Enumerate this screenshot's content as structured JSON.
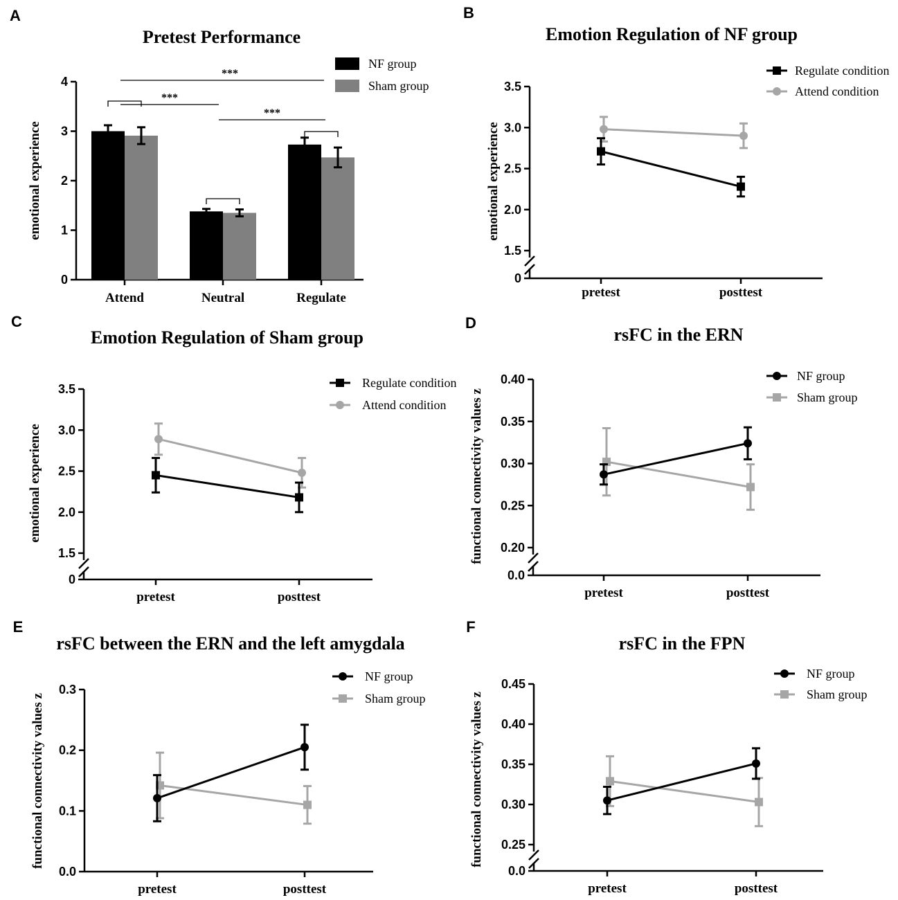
{
  "colors": {
    "nf": "#000000",
    "sham": "#a6a6a6",
    "sham_bar": "#808080"
  },
  "chart_data": [
    {
      "id": "A",
      "type": "bar",
      "panel_label": "A",
      "title": "Pretest Performance",
      "ylabel": "emotional experience",
      "ylim": [
        0,
        4
      ],
      "yticks": [
        "0",
        "1",
        "2",
        "3",
        "4"
      ],
      "categories": [
        "Attend",
        "Neutral",
        "Regulate"
      ],
      "series": [
        {
          "name": "NF group",
          "values": [
            3.0,
            1.38,
            2.73
          ],
          "errors": [
            0.12,
            0.05,
            0.14
          ]
        },
        {
          "name": "Sham group",
          "values": [
            2.91,
            1.35,
            2.47
          ],
          "errors": [
            0.17,
            0.07,
            0.2
          ]
        }
      ],
      "significance": [
        "***",
        "***",
        "***"
      ]
    },
    {
      "id": "B",
      "type": "line",
      "panel_label": "B",
      "title": "Emotion Regulation of NF group",
      "ylabel": "emotional experience",
      "ylim": [
        1.5,
        3.5
      ],
      "yticks": [
        "1.5",
        "2.0",
        "2.5",
        "3.0",
        "3.5"
      ],
      "ybreak": "0",
      "categories": [
        "pretest",
        "posttest"
      ],
      "series": [
        {
          "name": "Regulate condition",
          "values": [
            2.71,
            2.28
          ],
          "errors": [
            0.16,
            0.12
          ]
        },
        {
          "name": "Attend condition",
          "values": [
            2.98,
            2.9
          ],
          "errors": [
            0.15,
            0.15
          ]
        }
      ]
    },
    {
      "id": "C",
      "type": "line",
      "panel_label": "C",
      "title": "Emotion Regulation of Sham group",
      "ylabel": "emotional experience",
      "ylim": [
        1.5,
        3.5
      ],
      "yticks": [
        "1.5",
        "2.0",
        "2.5",
        "3.0",
        "3.5"
      ],
      "ybreak": "0",
      "categories": [
        "pretest",
        "posttest"
      ],
      "series": [
        {
          "name": "Regulate condition",
          "values": [
            2.45,
            2.18
          ],
          "errors": [
            0.21,
            0.18
          ]
        },
        {
          "name": "Attend condition",
          "values": [
            2.89,
            2.48
          ],
          "errors": [
            0.19,
            0.18
          ]
        }
      ]
    },
    {
      "id": "D",
      "type": "line",
      "panel_label": "D",
      "title": "rsFC in the ERN",
      "ylabel": "functional connectivity values z",
      "ylim": [
        0.2,
        0.4
      ],
      "yticks": [
        "0.20",
        "0.25",
        "0.30",
        "0.35",
        "0.40"
      ],
      "ybreak": "0.0",
      "categories": [
        "pretest",
        "posttest"
      ],
      "series": [
        {
          "name": "NF group",
          "values": [
            0.287,
            0.324
          ],
          "errors": [
            0.012,
            0.019
          ]
        },
        {
          "name": "Sham group",
          "values": [
            0.302,
            0.272
          ],
          "errors": [
            0.04,
            0.027
          ]
        }
      ]
    },
    {
      "id": "E",
      "type": "line",
      "panel_label": "E",
      "title": "rsFC between the ERN and the left amygdala",
      "ylabel": "functional connectivity values z",
      "ylim": [
        0,
        0.3
      ],
      "yticks": [
        "0.0",
        "0.1",
        "0.2",
        "0.3"
      ],
      "categories": [
        "pretest",
        "posttest"
      ],
      "series": [
        {
          "name": "NF group",
          "values": [
            0.121,
            0.205
          ],
          "errors": [
            0.038,
            0.037
          ]
        },
        {
          "name": "Sham group",
          "values": [
            0.142,
            0.11
          ],
          "errors": [
            0.054,
            0.031
          ]
        }
      ]
    },
    {
      "id": "F",
      "type": "line",
      "panel_label": "F",
      "title": "rsFC in the FPN",
      "ylabel": "functional connectivity values z",
      "ylim": [
        0.25,
        0.45
      ],
      "yticks": [
        "0.25",
        "0.30",
        "0.35",
        "0.40",
        "0.45"
      ],
      "ybreak": "0.0",
      "categories": [
        "pretest",
        "posttest"
      ],
      "series": [
        {
          "name": "NF group",
          "values": [
            0.305,
            0.351
          ],
          "errors": [
            0.017,
            0.019
          ]
        },
        {
          "name": "Sham group",
          "values": [
            0.329,
            0.303
          ],
          "errors": [
            0.031,
            0.03
          ]
        }
      ]
    }
  ]
}
